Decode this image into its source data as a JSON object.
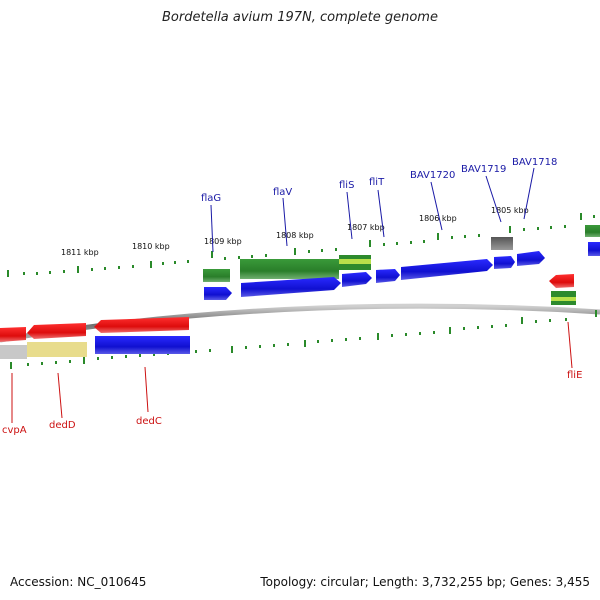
{
  "title": "Bordetella avium 197N, complete genome",
  "footer": {
    "accession": "Accession: NC_010645",
    "stats": "Topology: circular; Length: 3,732,255 bp; Genes: 3,455"
  },
  "scale_labels": [
    "1811 kbp",
    "1810 kbp",
    "1809 kbp",
    "1808 kbp",
    "1807 kbp",
    "1806 kbp",
    "1805 kbp"
  ],
  "genes_top": [
    "flaG",
    "flaV",
    "fliS",
    "fliT",
    "BAV1720",
    "BAV1719",
    "BAV1718"
  ],
  "genes_bottom": [
    "cvpA",
    "dedD",
    "dedC",
    "fliE"
  ],
  "colors": {
    "forward_cds": "#1010d8",
    "reverse_cds": "#e81010",
    "rna_green": "#2d8a2d",
    "light_green": "#b8e04a",
    "gray_feature": "#707070",
    "pale_feature": "#e8dc8c",
    "backbone": "#8a8a8a",
    "ticks": "#2a8a2a",
    "label_top": "#1a1aa6",
    "label_bottom": "#cc1111"
  }
}
